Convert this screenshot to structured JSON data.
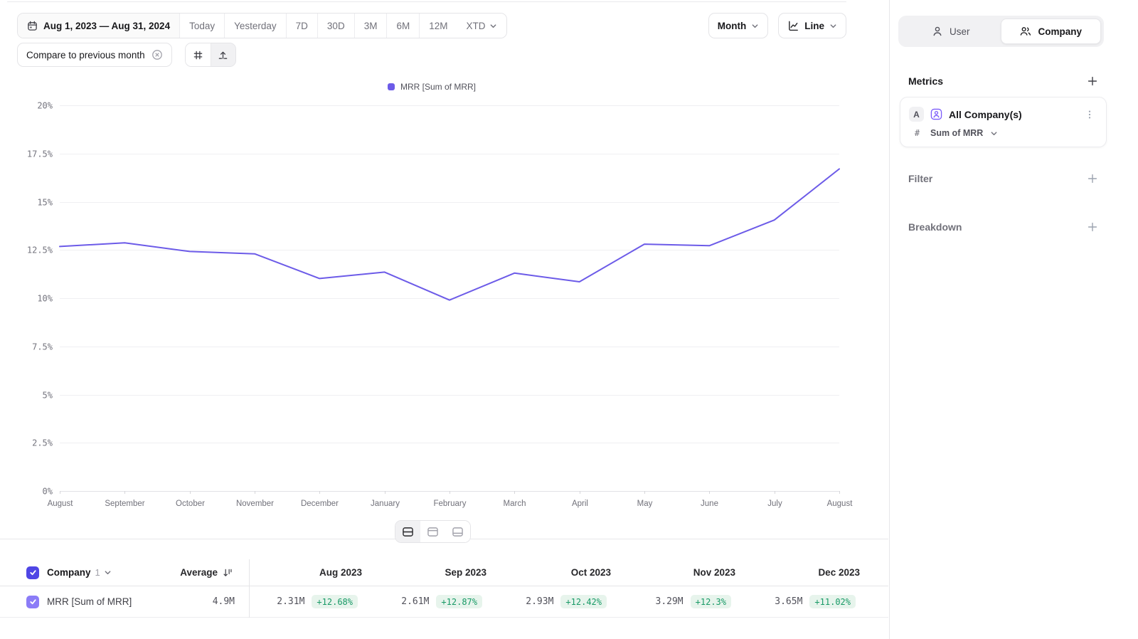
{
  "colors": {
    "accent": "#6C5BE8",
    "checkbox_header": "#4F46E5",
    "checkbox_row": "#8B7CF7",
    "metric_icon": "#7C5CFA",
    "badge_bg": "#E7F4EC",
    "badge_text": "#189A66"
  },
  "toolbar": {
    "date_range": "Aug 1, 2023 — Aug 31, 2024",
    "quick_ranges": [
      "Today",
      "Yesterday",
      "7D",
      "30D",
      "3M",
      "6M",
      "12M"
    ],
    "xtd": "XTD",
    "granularity": "Month",
    "chart_type": "Line",
    "compare_label": "Compare to previous month"
  },
  "legend": {
    "label": "MRR [Sum of MRR]"
  },
  "chart_data": {
    "type": "line",
    "title": "",
    "xlabel": "",
    "ylabel": "",
    "x": [
      "August",
      "September",
      "October",
      "November",
      "December",
      "January",
      "February",
      "March",
      "April",
      "May",
      "June",
      "July",
      "August"
    ],
    "series": [
      {
        "name": "MRR [Sum of MRR]",
        "color": "#6C5BE8",
        "values": [
          12.68,
          12.87,
          12.42,
          12.3,
          11.02,
          11.35,
          9.9,
          11.3,
          10.85,
          12.8,
          12.72,
          14.05,
          16.7
        ]
      }
    ],
    "ylim": [
      0,
      20
    ],
    "yticks": [
      0,
      2.5,
      5,
      7.5,
      10,
      12.5,
      15,
      17.5,
      20
    ],
    "ytick_labels": [
      "0%",
      "2.5%",
      "5%",
      "7.5%",
      "10%",
      "12.5%",
      "15%",
      "17.5%",
      "20%"
    ],
    "grid": true,
    "legend_position": "top-center"
  },
  "sidebar": {
    "toggle": {
      "user": "User",
      "company": "Company",
      "active": "Company"
    },
    "metrics_title": "Metrics",
    "metric_card": {
      "badge": "A",
      "name": "All Company(s)",
      "hash": "#",
      "aggregation": "Sum of MRR"
    },
    "filter": "Filter",
    "breakdown": "Breakdown"
  },
  "table": {
    "entity_label": "Company",
    "entity_count": "1",
    "average_label": "Average",
    "row_name": "MRR [Sum of MRR]",
    "average_value": "4.9M",
    "columns": [
      {
        "label": "Aug 2023",
        "value": "2.31M",
        "change": "+12.68%"
      },
      {
        "label": "Sep 2023",
        "value": "2.61M",
        "change": "+12.87%"
      },
      {
        "label": "Oct 2023",
        "value": "2.93M",
        "change": "+12.42%"
      },
      {
        "label": "Nov 2023",
        "value": "3.29M",
        "change": "+12.3%"
      },
      {
        "label": "Dec 2023",
        "value": "3.65M",
        "change": "+11.02%"
      }
    ]
  }
}
